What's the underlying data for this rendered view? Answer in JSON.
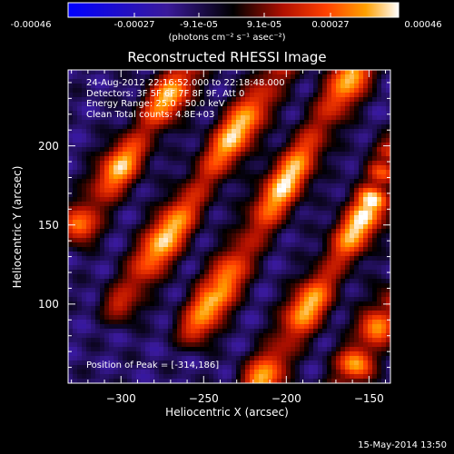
{
  "colorbar": {
    "tick_labels": [
      "-0.00046",
      "-0.00027",
      "-9.1e-05",
      "9.1e-05",
      "0.00027",
      "0.00046"
    ],
    "unit_label": "(photons cm⁻² s⁻¹ asec⁻²)",
    "colors": [
      "#0000ff",
      "#3a1a9a",
      "#000000",
      "#b01000",
      "#ff4000",
      "#ffa000",
      "#ffffff"
    ]
  },
  "chart_data": {
    "type": "heatmap",
    "title": "Reconstructed RHESSI Image",
    "xlabel": "Heliocentric X (arcsec)",
    "ylabel": "Heliocentric Y (arcsec)",
    "xlim": [
      -332,
      -137
    ],
    "ylim": [
      50,
      248
    ],
    "xticks": [
      -300,
      -250,
      -200,
      -150
    ],
    "yticks": [
      100,
      150,
      200
    ],
    "info_lines": [
      "24-Aug-2012 22:16:52.000 to 22:18:48.000",
      "Detectors: 3F 5F 6F 7F 8F 9F, Att 0",
      "Energy Range: 25.0 - 50.0 keV",
      "Clean    Total counts: 4.8E+03"
    ],
    "peak_label": "Position of Peak = [-314,186]",
    "stripes": [
      {
        "x1": -325,
        "y1": 150,
        "x2": -260,
        "y2": 248,
        "amp": 0.95
      },
      {
        "x1": -300,
        "y1": 100,
        "x2": -205,
        "y2": 248,
        "amp": 1.0
      },
      {
        "x1": -255,
        "y1": 85,
        "x2": -160,
        "y2": 245,
        "amp": 1.0
      },
      {
        "x1": -215,
        "y1": 52,
        "x2": -150,
        "y2": 160,
        "amp": 0.95
      },
      {
        "x1": -165,
        "y1": 50,
        "x2": -137,
        "y2": 100,
        "amp": 0.9
      },
      {
        "x1": -150,
        "y1": 160,
        "x2": -137,
        "y2": 195,
        "amp": 0.7
      }
    ],
    "peak": [
      -314,
      186
    ]
  },
  "footer": {
    "date": "15-May-2014 13:50"
  }
}
